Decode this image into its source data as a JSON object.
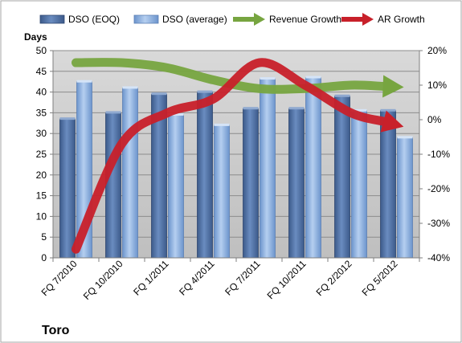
{
  "chart_data": {
    "type": "bar",
    "title": "Toro",
    "ylabel": "Days",
    "y2label": "",
    "ylim": [
      0,
      50
    ],
    "y2lim": [
      -40,
      20
    ],
    "yticks": [
      0,
      5,
      10,
      15,
      20,
      25,
      30,
      35,
      40,
      45,
      50
    ],
    "y2ticks": [
      "-40%",
      "-30%",
      "-20%",
      "-10%",
      "0%",
      "10%",
      "20%"
    ],
    "y2tick_values": [
      -40,
      -30,
      -20,
      -10,
      0,
      10,
      20
    ],
    "categories": [
      "FQ 7/2010",
      "FQ 10/2010",
      "FQ 1/2011",
      "FQ 4/2011",
      "FQ 7/2011",
      "FQ 10/2011",
      "FQ 2/2012",
      "FQ 5/2012"
    ],
    "legend_position": "top",
    "grid": true,
    "series": [
      {
        "name": "DSO (EOQ)",
        "kind": "bar",
        "axis": "left",
        "color": "#4f6fa0",
        "values": [
          33.5,
          35,
          39.5,
          40,
          36,
          36,
          39,
          35.5
        ]
      },
      {
        "name": "DSO (average)",
        "kind": "bar",
        "axis": "left",
        "color": "#8aafe0",
        "values": [
          42.5,
          41,
          34.5,
          32,
          43.2,
          43.5,
          35.5,
          29
        ]
      },
      {
        "name": "Revenue Growth",
        "kind": "arrow-line",
        "axis": "right",
        "color": "#77a540",
        "values": [
          16.5,
          16.5,
          15,
          11.5,
          9,
          9,
          10,
          9.5
        ]
      },
      {
        "name": "AR Growth",
        "kind": "arrow-line",
        "axis": "right",
        "color": "#c8202a",
        "values": [
          -37.5,
          -7,
          2,
          6,
          16.5,
          10,
          2,
          -1.5
        ]
      }
    ]
  }
}
